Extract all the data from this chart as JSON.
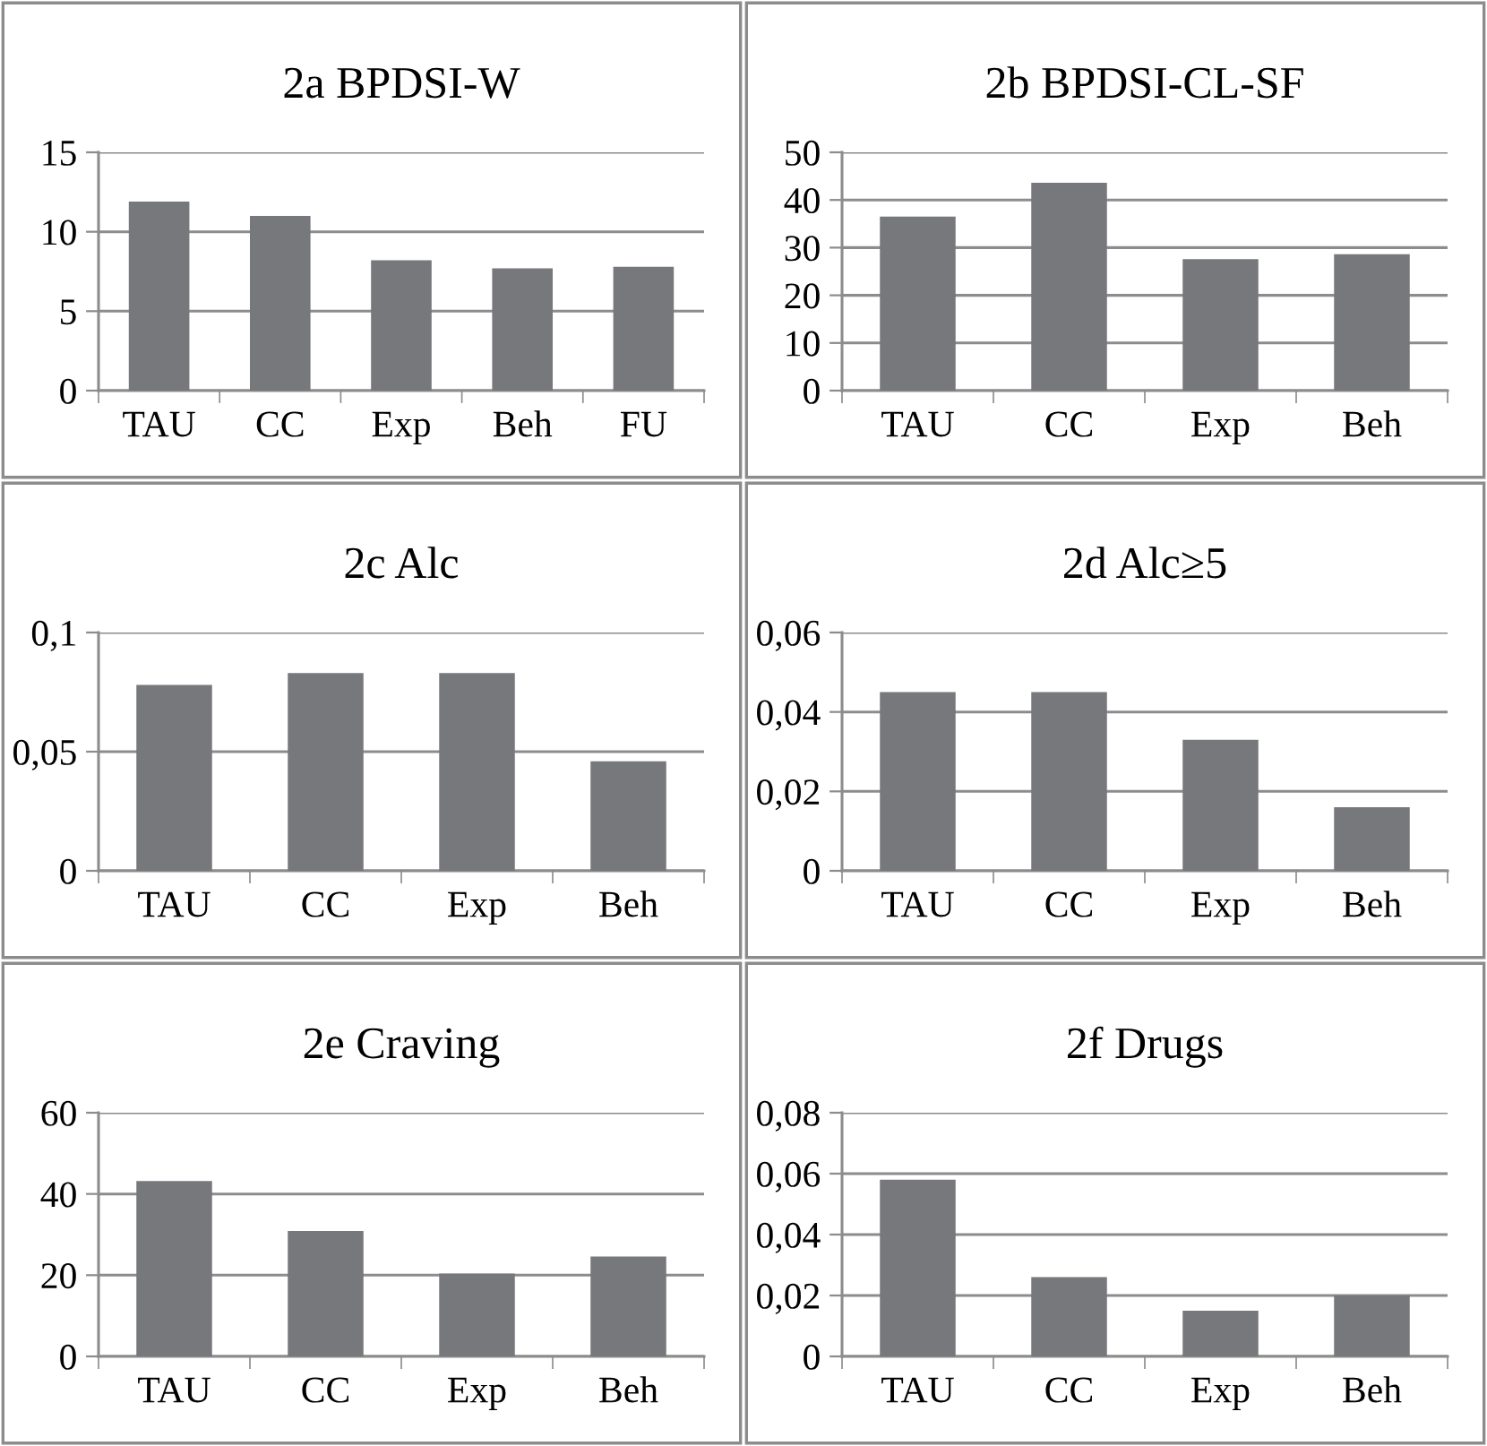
{
  "chart_data": [
    {
      "type": "bar",
      "title": "2a BPDSI-W",
      "categories": [
        "TAU",
        "CC",
        "Exp",
        "Beh",
        "FU"
      ],
      "values": [
        11.9,
        11.0,
        8.2,
        7.7,
        7.8
      ],
      "color": "#77787b",
      "ylim": [
        0,
        15
      ],
      "yticks": [
        0,
        5,
        10,
        15
      ],
      "grid": "y"
    },
    {
      "type": "bar",
      "title": "2b BPDSI-CL-SF",
      "categories": [
        "TAU",
        "CC",
        "Exp",
        "Beh"
      ],
      "values": [
        36.5,
        43.6,
        27.6,
        28.6
      ],
      "color": "#77787b",
      "ylim": [
        0,
        50
      ],
      "yticks": [
        0,
        10,
        20,
        30,
        40,
        50
      ],
      "grid": "y"
    },
    {
      "type": "bar",
      "title": "2c Alc",
      "categories": [
        "TAU",
        "CC",
        "Exp",
        "Beh"
      ],
      "values": [
        0.078,
        0.083,
        0.083,
        0.046
      ],
      "color": "#77787b",
      "ylim": [
        0,
        0.1
      ],
      "yticks": [
        0,
        {
          "value": 0.05,
          "label": "0,05"
        },
        {
          "value": 0.1,
          "label": "0,1"
        }
      ],
      "grid": "y"
    },
    {
      "type": "bar",
      "title": "2d Alc≥5",
      "categories": [
        "TAU",
        "CC",
        "Exp",
        "Beh"
      ],
      "values": [
        0.045,
        0.045,
        0.033,
        0.016
      ],
      "color": "#77787b",
      "ylim": [
        0,
        0.06
      ],
      "yticks": [
        0,
        {
          "value": 0.02,
          "label": "0,02"
        },
        {
          "value": 0.04,
          "label": "0,04"
        },
        {
          "value": 0.06,
          "label": "0,06"
        }
      ],
      "grid": "y"
    },
    {
      "type": "bar",
      "title": "2e Craving",
      "categories": [
        "TAU",
        "CC",
        "Exp",
        "Beh"
      ],
      "values": [
        43.2,
        30.9,
        20.4,
        24.6
      ],
      "color": "#77787b",
      "ylim": [
        0,
        60
      ],
      "yticks": [
        0,
        20,
        40,
        60
      ],
      "grid": "y"
    },
    {
      "type": "bar",
      "title": "2f Drugs",
      "categories": [
        "TAU",
        "CC",
        "Exp",
        "Beh"
      ],
      "values": [
        0.058,
        0.026,
        0.015,
        0.02
      ],
      "color": "#77787b",
      "ylim": [
        0,
        0.08
      ],
      "yticks": [
        0,
        {
          "value": 0.02,
          "label": "0,02"
        },
        {
          "value": 0.04,
          "label": "0,04"
        },
        {
          "value": 0.06,
          "label": "0,06"
        },
        {
          "value": 0.08,
          "label": "0,08"
        }
      ],
      "grid": "y"
    }
  ]
}
